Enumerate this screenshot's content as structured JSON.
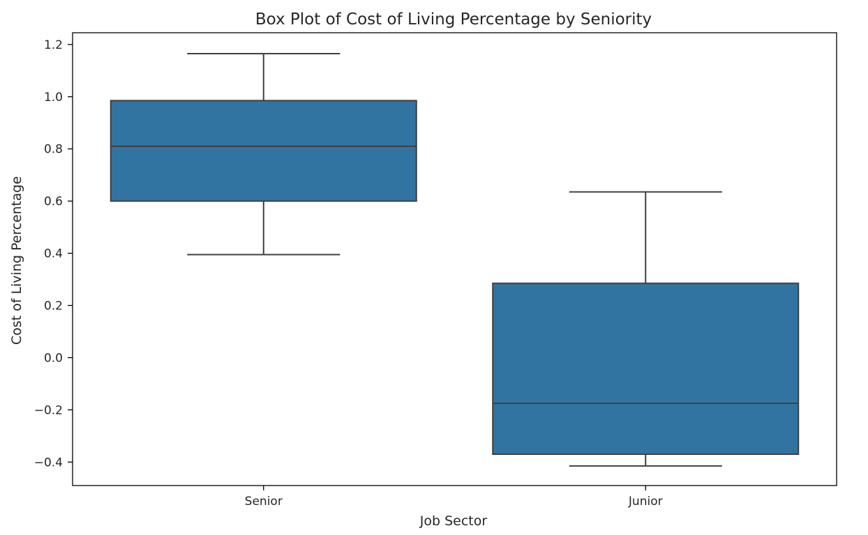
{
  "chart_data": {
    "type": "box",
    "title": "Box Plot of Cost of Living Percentage by Seniority",
    "xlabel": "Job Sector",
    "ylabel": "Cost of Living Percentage",
    "categories": [
      "Senior",
      "Junior"
    ],
    "boxes": [
      {
        "category": "Senior",
        "whisker_low": 0.395,
        "q1": 0.6,
        "median": 0.81,
        "q3": 0.985,
        "whisker_high": 1.165
      },
      {
        "category": "Junior",
        "whisker_low": -0.415,
        "q1": -0.37,
        "median": -0.175,
        "q3": 0.285,
        "whisker_high": 0.635
      }
    ],
    "ylim": [
      -0.49,
      1.245
    ],
    "yticks": [
      -0.4,
      -0.2,
      0.0,
      0.2,
      0.4,
      0.6,
      0.8,
      1.0,
      1.2
    ],
    "ytick_labels": [
      "−0.4",
      "−0.2",
      "0.0",
      "0.2",
      "0.4",
      "0.6",
      "0.8",
      "1.0",
      "1.2"
    ],
    "box_color": "#3274a1",
    "line_color": "#3f3f3f",
    "grid": false,
    "legend": "none"
  }
}
